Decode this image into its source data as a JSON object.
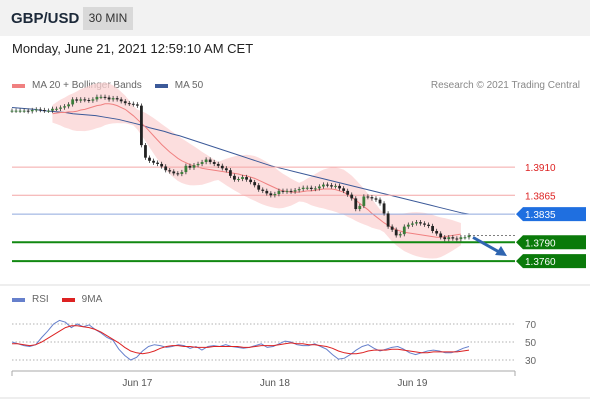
{
  "header": {
    "pair": "GBP/USD",
    "timeframe": "30 MIN",
    "datetime": "Monday, June 21, 2021 12:59:10 AM CET"
  },
  "legend": {
    "ma20_label": "MA 20 + Bollinger Bands",
    "ma50_label": "MA 50",
    "credit": "Research © 2021 Trading Central"
  },
  "rsi_legend": {
    "rsi_label": "RSI",
    "ma_label": "9MA"
  },
  "colors": {
    "candle_up": "#3a7d3a",
    "candle_down": "#222222",
    "ma20": "#f08080",
    "band_fill": "#fbd3d3",
    "ma50": "#3c5a99",
    "resistance": "#f4a6a6",
    "pivot": "#8fa9dd",
    "support": "#118811",
    "support_badge": "#0a7a0a",
    "pivot_badge": "#1f6fe0",
    "resistance_text": "#dd2222",
    "rsi": "#6680cc",
    "rsi_ma": "#dd2222"
  },
  "chart_data": {
    "type": "candlestick",
    "ylim": [
      1.3725,
      1.4025
    ],
    "x_ticks": [
      "Jun 17",
      "Jun 18",
      "Jun 19"
    ],
    "levels": [
      {
        "value": 1.391,
        "label": "1.3910",
        "role": "resistance"
      },
      {
        "value": 1.3865,
        "label": "1.3865",
        "role": "resistance"
      },
      {
        "value": 1.3835,
        "label": "1.3835",
        "role": "pivot"
      },
      {
        "value": 1.379,
        "label": "1.3790",
        "role": "support"
      },
      {
        "value": 1.376,
        "label": "1.3760",
        "role": "support"
      }
    ],
    "close": [
      1.4,
      1.4,
      1.4,
      1.4,
      1.3999,
      1.4001,
      1.4002,
      1.4001,
      1.4,
      1.4,
      1.4003,
      1.4003,
      1.4005,
      1.4007,
      1.401,
      1.4018,
      1.4016,
      1.4018,
      1.4017,
      1.4016,
      1.4018,
      1.4022,
      1.4022,
      1.4021,
      1.4018,
      1.402,
      1.4018,
      1.4015,
      1.4012,
      1.4011,
      1.401,
      1.4008,
      1.3945,
      1.3925,
      1.392,
      1.3917,
      1.3915,
      1.3911,
      1.3905,
      1.3903,
      1.39,
      1.3899,
      1.3902,
      1.3912,
      1.3909,
      1.3913,
      1.3915,
      1.3918,
      1.3922,
      1.3918,
      1.3915,
      1.3912,
      1.3908,
      1.3905,
      1.3896,
      1.389,
      1.3891,
      1.3894,
      1.389,
      1.3886,
      1.3881,
      1.3874,
      1.3872,
      1.3868,
      1.3865,
      1.3867,
      1.3872,
      1.3871,
      1.3872,
      1.3871,
      1.3873,
      1.3875,
      1.3877,
      1.3877,
      1.3875,
      1.3876,
      1.3879,
      1.3882,
      1.3881,
      1.3879,
      1.388,
      1.3876,
      1.3872,
      1.3866,
      1.386,
      1.3843,
      1.3848,
      1.3863,
      1.3862,
      1.386,
      1.3858,
      1.3852,
      1.3836,
      1.3815,
      1.381,
      1.3801,
      1.3803,
      1.3815,
      1.3818,
      1.382,
      1.3822,
      1.382,
      1.3818,
      1.3816,
      1.3808,
      1.3804,
      1.3798,
      1.3795,
      1.3798,
      1.3796,
      1.3795,
      1.3798,
      1.3798,
      1.3801
    ],
    "ma20": [
      1.3995,
      1.3996,
      1.3997,
      1.3997,
      1.3998,
      1.3998,
      1.3999,
      1.4001,
      1.4002,
      1.4004,
      1.4006,
      1.4008,
      1.4009,
      1.4011,
      1.4011,
      1.401,
      1.4008,
      1.4005,
      1.4002,
      1.3997,
      1.3992,
      1.3986,
      1.398,
      1.3974,
      1.3967,
      1.396,
      1.3953,
      1.3946,
      1.394,
      1.3934,
      1.3929,
      1.3924,
      1.392,
      1.3917,
      1.3914,
      1.3912,
      1.391,
      1.3908,
      1.3907,
      1.3906,
      1.3905,
      1.3904,
      1.3903,
      1.3902,
      1.3901,
      1.39,
      1.3899,
      1.3897,
      1.3896,
      1.3894,
      1.3892,
      1.3889,
      1.3886,
      1.3883,
      1.388,
      1.3877,
      1.3874,
      1.3872,
      1.3871,
      1.387,
      1.387,
      1.387,
      1.3871,
      1.3872,
      1.3872,
      1.3873,
      1.3874,
      1.3875,
      1.3875,
      1.3875,
      1.3874,
      1.3872,
      1.387,
      1.3866,
      1.3862,
      1.3857,
      1.3852,
      1.3847,
      1.3842,
      1.3836,
      1.3831,
      1.3826,
      1.3821,
      1.3817,
      1.3813,
      1.381,
      1.3808,
      1.3806,
      1.3805,
      1.3804,
      1.3803,
      1.3802,
      1.3801,
      1.38,
      1.3799,
      1.3798,
      1.3798,
      1.3799,
      1.38,
      1.3801,
      1.3802,
      1.3803
    ],
    "ma50": [
      1.4005,
      1.4004,
      1.4003,
      1.4002,
      1.4,
      1.3999,
      1.3998,
      1.3997,
      1.3995,
      1.3994,
      1.3993,
      1.3992,
      1.399,
      1.3988,
      1.3986,
      1.3983,
      1.398,
      1.3977,
      1.3973,
      1.397,
      1.3967,
      1.3963,
      1.396,
      1.3956,
      1.3952,
      1.3948,
      1.3944,
      1.394,
      1.3936,
      1.3932,
      1.3928,
      1.3924,
      1.392,
      1.3916,
      1.3912,
      1.3909,
      1.3906,
      1.3903,
      1.39,
      1.3897,
      1.3894,
      1.3891,
      1.3888,
      1.3885,
      1.3882,
      1.3879,
      1.3876,
      1.3873,
      1.387,
      1.3867,
      1.3864,
      1.3861,
      1.3858,
      1.3855,
      1.3852,
      1.3849,
      1.3846,
      1.3843,
      1.384,
      1.3837,
      1.3835
    ],
    "rsi": [
      50,
      48,
      46,
      45,
      47,
      55,
      62,
      70,
      74,
      72,
      66,
      70,
      67,
      69,
      64,
      60,
      55,
      52,
      42,
      35,
      30,
      33,
      40,
      45,
      47,
      46,
      44,
      45,
      47,
      46,
      43,
      45,
      41,
      45,
      46,
      45,
      47,
      45,
      44,
      43,
      44,
      46,
      48,
      44,
      45,
      48,
      51,
      50,
      47,
      46,
      46,
      48,
      45,
      42,
      36,
      31,
      32,
      36,
      41,
      45,
      47,
      43,
      40,
      42,
      44,
      45,
      42,
      38,
      36,
      38,
      40,
      41,
      40,
      38,
      38,
      40,
      43,
      45
    ],
    "rsi_ma": [
      48,
      48,
      47,
      46,
      47,
      50,
      54,
      58,
      62,
      66,
      68,
      68,
      67,
      66,
      64,
      61,
      57,
      53,
      49,
      44,
      40,
      38,
      37,
      38,
      40,
      43,
      45,
      46,
      46,
      45,
      45,
      44,
      44,
      44,
      45,
      45,
      45,
      45,
      45,
      44,
      44,
      45,
      46,
      46,
      46,
      47,
      48,
      49,
      48,
      48,
      47,
      47,
      46,
      45,
      43,
      40,
      38,
      37,
      37,
      38,
      40,
      41,
      41,
      41,
      42,
      42,
      41,
      40,
      39,
      38,
      38,
      39,
      39,
      39,
      39,
      39,
      40,
      41
    ],
    "rsi_levels": [
      {
        "value": 70,
        "label": "70"
      },
      {
        "value": 50,
        "label": "50"
      },
      {
        "value": 30,
        "label": "30"
      }
    ]
  }
}
